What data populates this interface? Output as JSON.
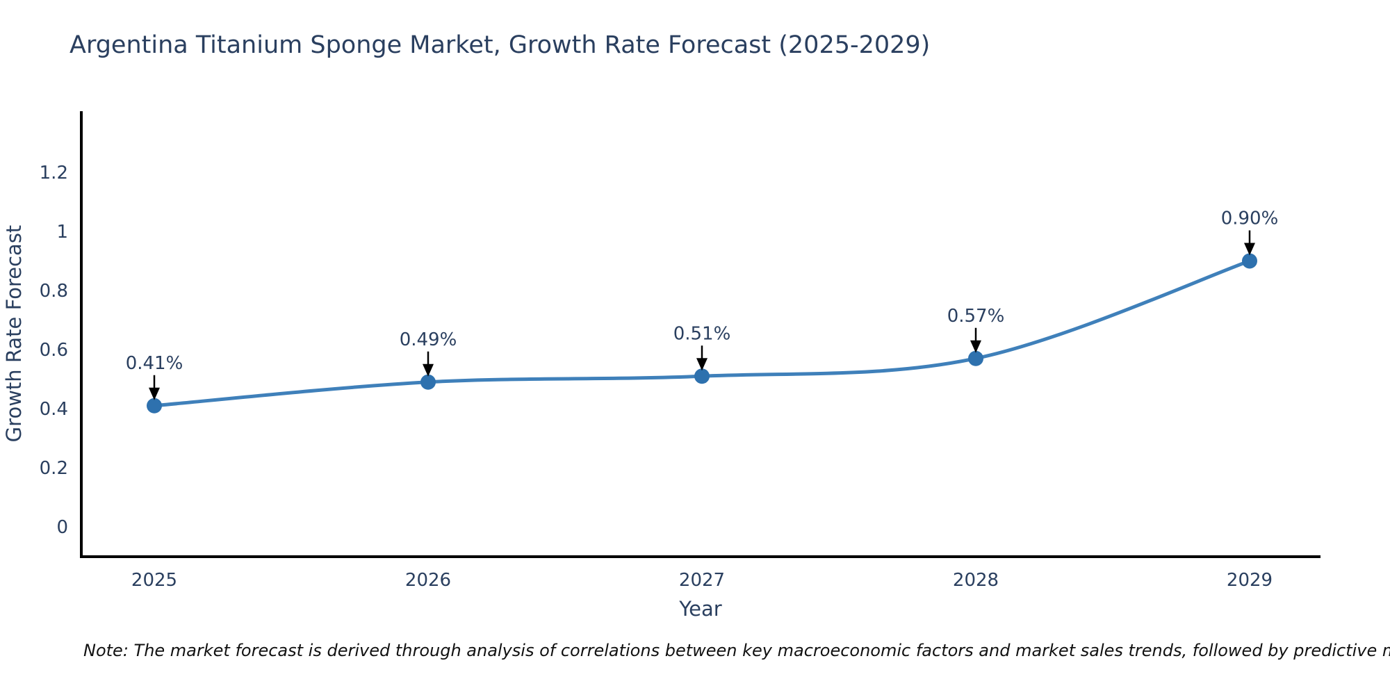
{
  "title": "Argentina Titanium Sponge Market, Growth Rate Forecast (2025-2029)",
  "note": "Note: The market forecast is derived through analysis of correlations between key macroeconomic factors and market sales trends, followed by predictive modeling to project future sales",
  "chart_data": {
    "type": "line",
    "title": "Argentina Titanium Sponge Market, Growth Rate Forecast (2025-2029)",
    "x": [
      "2025",
      "2026",
      "2027",
      "2028",
      "2029"
    ],
    "series": [
      {
        "name": "Growth Rate Forecast",
        "values": [
          0.41,
          0.49,
          0.51,
          0.57,
          0.9
        ]
      }
    ],
    "point_labels": [
      "0.41%",
      "0.49%",
      "0.51%",
      "0.57%",
      "0.90%"
    ],
    "xlabel": "Year",
    "ylabel": "Growth Rate Forecast",
    "yticks": [
      0,
      0.2,
      0.4,
      0.6,
      0.8,
      1,
      1.2
    ],
    "ytick_labels": [
      "0",
      "0.2",
      "0.4",
      "0.6",
      "0.8",
      "1",
      "1.2"
    ],
    "ylim": [
      -0.11,
      1.41
    ],
    "grid": false,
    "legend": false,
    "line_shape": "spline",
    "colors": {
      "line": "#3f80ba",
      "marker": "#2e71ae",
      "axis": "#000000",
      "text": "#2a3f5f",
      "annotation_text": "#2a3f5f",
      "annotation_arrow": "#000000",
      "background": "#ffffff"
    }
  }
}
